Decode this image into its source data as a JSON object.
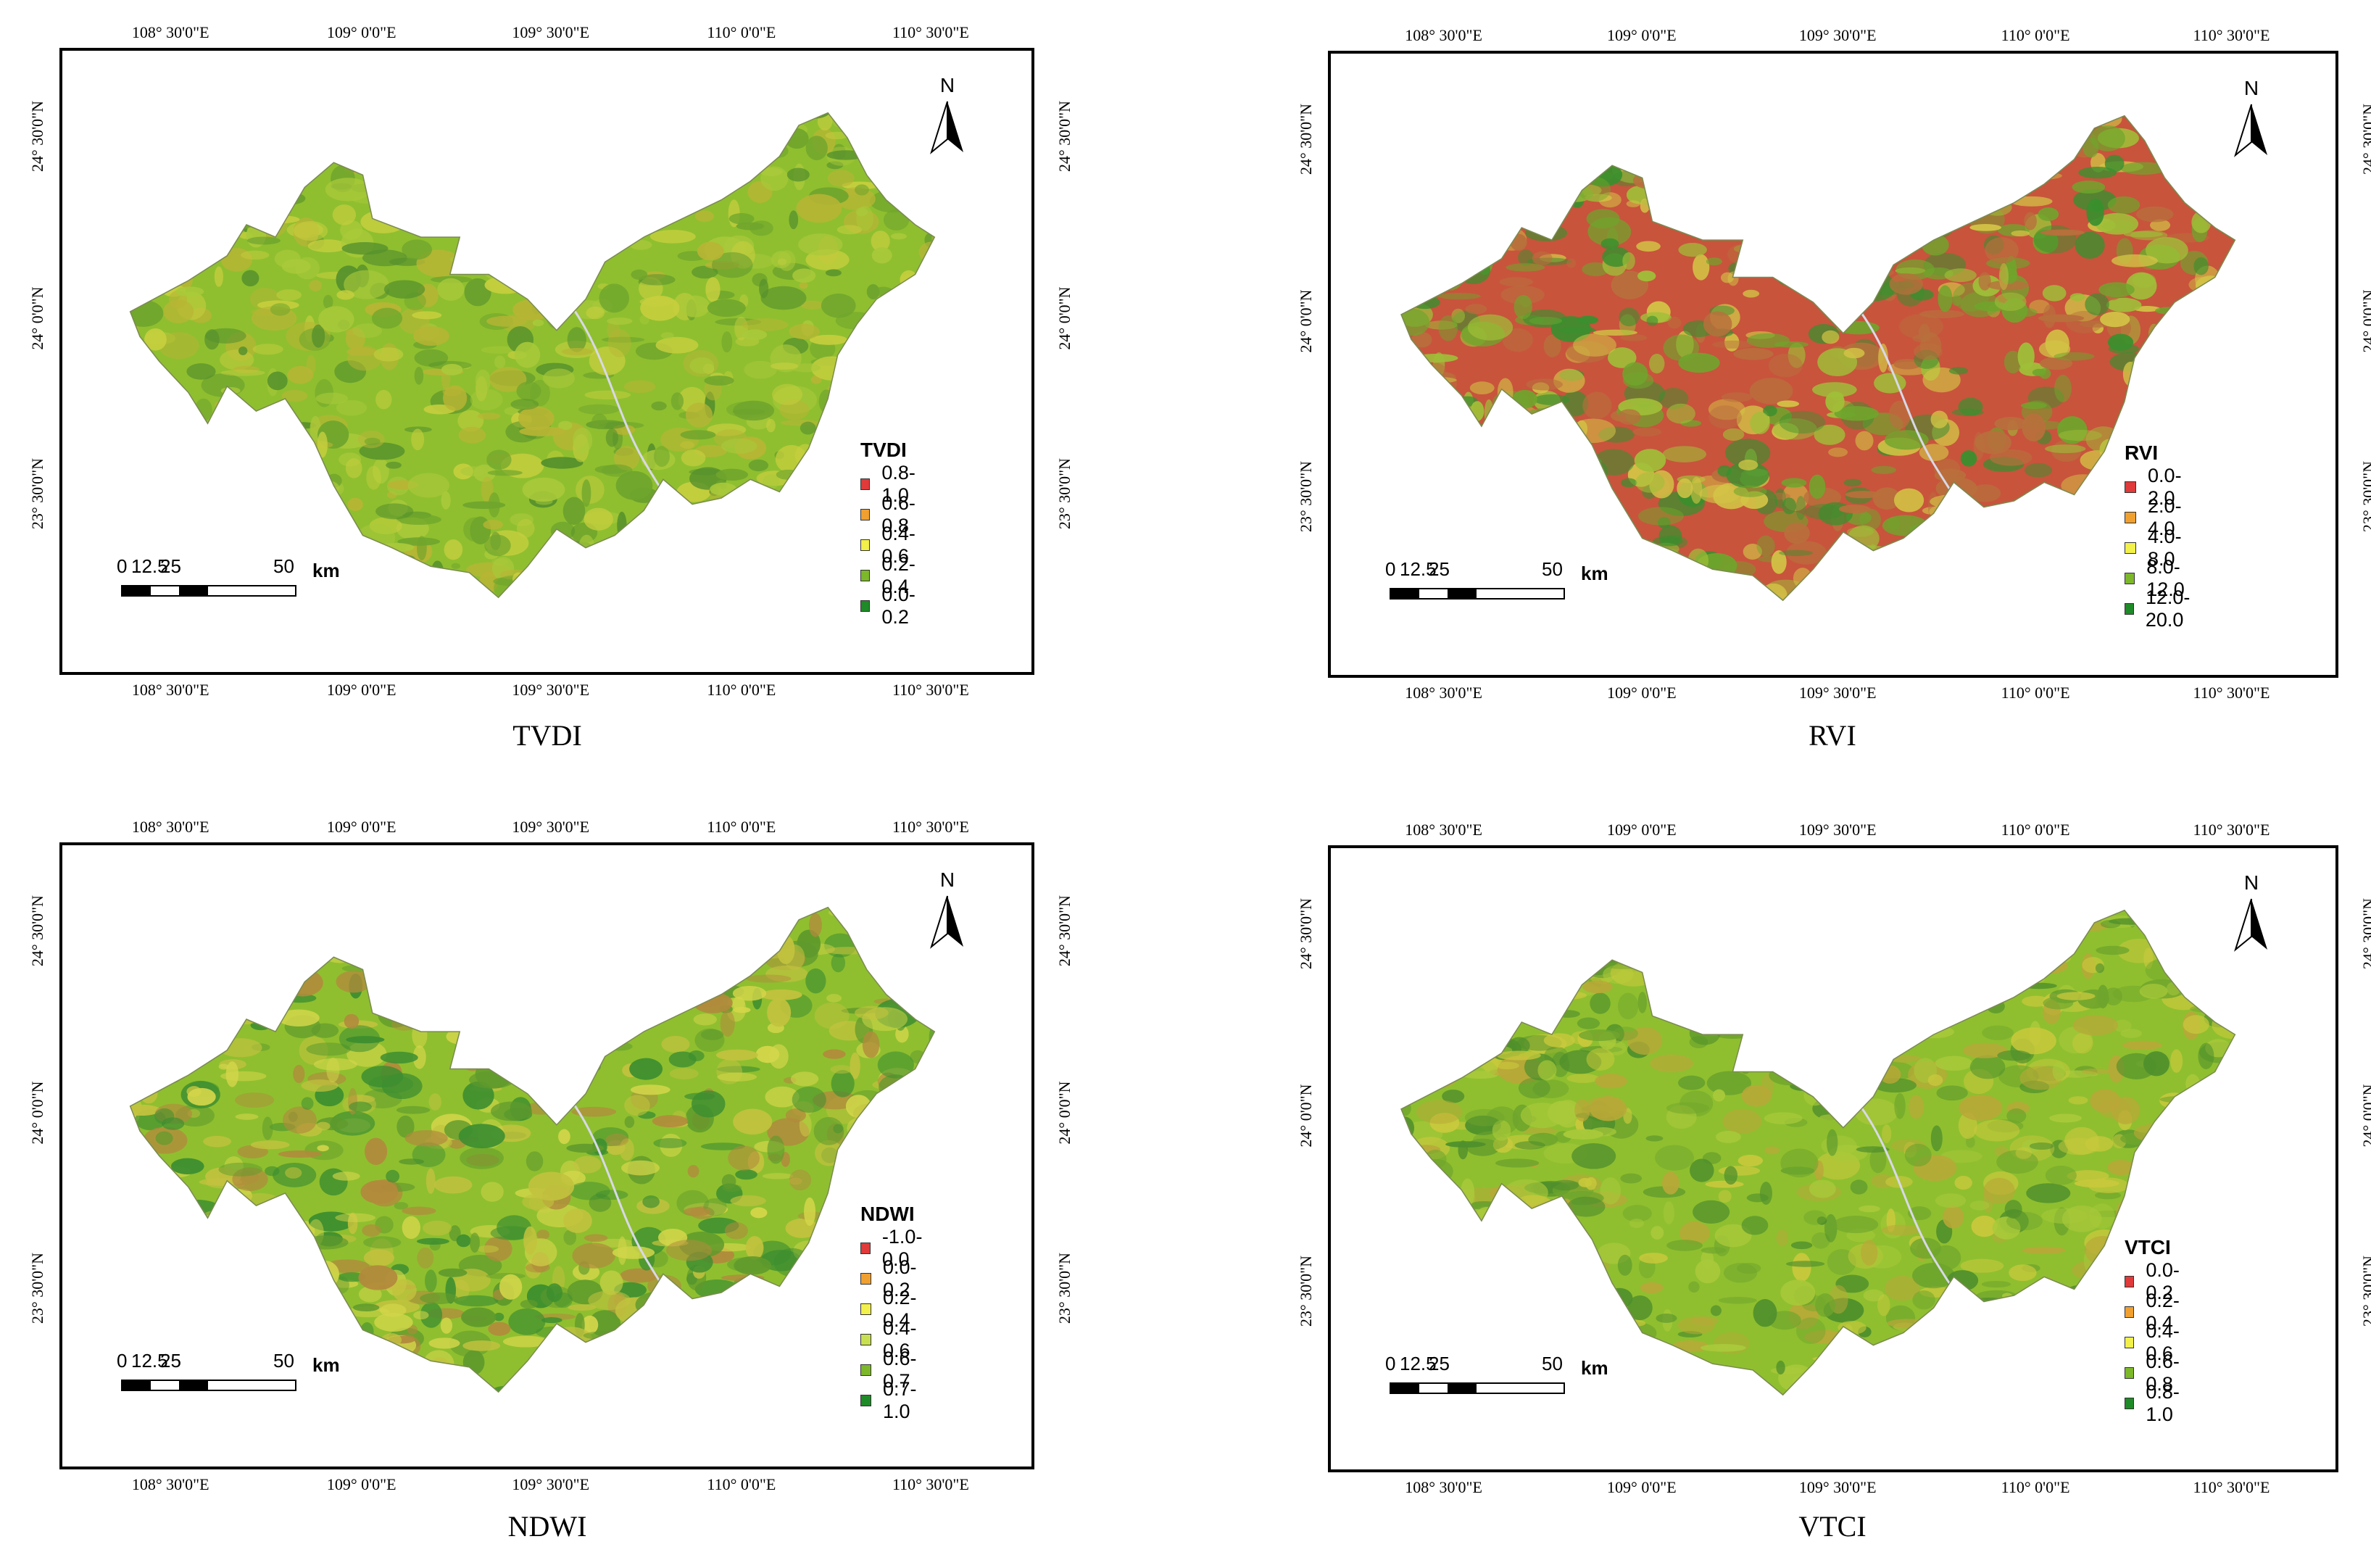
{
  "lon_labels": [
    "108° 30'0\"E",
    "109° 0'0\"E",
    "109° 30'0\"E",
    "110° 0'0\"E",
    "110° 30'0\"E"
  ],
  "lat_labels": [
    "24° 30'0\"N",
    "24° 0'0\"N",
    "23° 30'0\"N"
  ],
  "north_label": "N",
  "scalebar": {
    "ticks": [
      "0",
      "12.5",
      "25",
      "50"
    ],
    "unit": "km"
  },
  "panels": [
    {
      "id": "tvdi",
      "caption": "TVDI",
      "legend": {
        "title": "TVDI",
        "items": [
          {
            "label": "0.8-1.0",
            "color": "#e03a3a"
          },
          {
            "label": "0.6-0.8",
            "color": "#f0a030"
          },
          {
            "label": "0.4-0.6",
            "color": "#f2f04a"
          },
          {
            "label": "0.2-0.4",
            "color": "#7cb82a"
          },
          {
            "label": "0.0-0.2",
            "color": "#1f8a28"
          }
        ]
      },
      "palette": [
        "#8fbf2f",
        "#a9c93a",
        "#6fa52c",
        "#c7cf3e",
        "#55902c",
        "#b8b534"
      ]
    },
    {
      "id": "rvi",
      "caption": "RVI",
      "legend": {
        "title": "RVI",
        "items": [
          {
            "label": "0.0-2.0",
            "color": "#e03a3a"
          },
          {
            "label": "2.0-4.0",
            "color": "#f0a030"
          },
          {
            "label": "4.0-8.0",
            "color": "#f2f04a"
          },
          {
            "label": "8.0-12.0",
            "color": "#7cb82a"
          },
          {
            "label": "12.0-20.0",
            "color": "#1f8a28"
          }
        ]
      },
      "palette": [
        "#c8543c",
        "#6fa52c",
        "#3a8f2e",
        "#d3c446",
        "#9fbf38",
        "#b8703c"
      ]
    },
    {
      "id": "ndwi",
      "caption": "NDWI",
      "legend": {
        "title": "NDWI",
        "items": [
          {
            "label": "-1.0-0.0",
            "color": "#e03a3a"
          },
          {
            "label": "0.0-0.2",
            "color": "#f0a030"
          },
          {
            "label": "0.2-0.4",
            "color": "#f2f04a"
          },
          {
            "label": "0.4-0.6",
            "color": "#c8e050"
          },
          {
            "label": "0.6-0.7",
            "color": "#7cb82a"
          },
          {
            "label": "0.7-1.0",
            "color": "#1f8a28"
          }
        ]
      },
      "palette": [
        "#8fbf2f",
        "#c2c23e",
        "#5f9a2c",
        "#3d8e30",
        "#b28a3c",
        "#d4d64a"
      ]
    },
    {
      "id": "vtci",
      "caption": "VTCI",
      "legend": {
        "title": "VTCI",
        "items": [
          {
            "label": "0.0-0.2",
            "color": "#e03a3a"
          },
          {
            "label": "0.2-0.4",
            "color": "#f0a030"
          },
          {
            "label": "0.4-0.6",
            "color": "#f2f04a"
          },
          {
            "label": "0.6-0.8",
            "color": "#7cb82a"
          },
          {
            "label": "0.8-1.0",
            "color": "#1f8a28"
          }
        ]
      },
      "palette": [
        "#8fbf2f",
        "#a9c93a",
        "#6fa52c",
        "#c9c93c",
        "#4f8f2c",
        "#b9a838"
      ]
    }
  ]
}
